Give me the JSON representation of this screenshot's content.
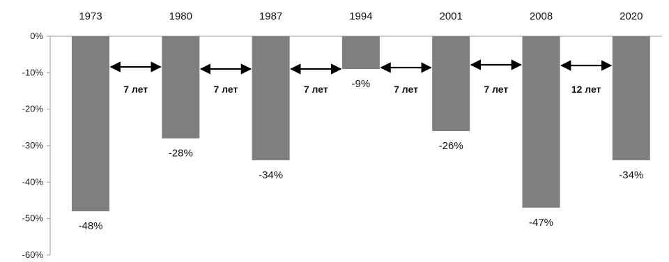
{
  "chart_data": {
    "type": "bar",
    "categories": [
      "1973",
      "1980",
      "1987",
      "1994",
      "2001",
      "2008",
      "2020"
    ],
    "values": [
      -48,
      -28,
      -34,
      -9,
      -26,
      -47,
      -34
    ],
    "data_labels": [
      "-48%",
      "-28%",
      "-34%",
      "-9%",
      "-26%",
      "-47%",
      "-34%"
    ],
    "ylim": [
      -60,
      0
    ],
    "yticks": [
      0,
      -10,
      -20,
      -30,
      -40,
      -50,
      -60
    ],
    "ytick_labels": [
      "0%",
      "-10%",
      "-20%",
      "-30%",
      "-40%",
      "-50%",
      "-60%"
    ],
    "category_axis_position": "top",
    "bar_color": "#7f7f7f",
    "annotations": [
      {
        "from": "1973",
        "to": "1980",
        "label": "7 лет"
      },
      {
        "from": "1980",
        "to": "1987",
        "label": "7 лет"
      },
      {
        "from": "1987",
        "to": "1994",
        "label": "7 лет"
      },
      {
        "from": "1994",
        "to": "2001",
        "label": "7 лет"
      },
      {
        "from": "2001",
        "to": "2008",
        "label": "7 лет"
      },
      {
        "from": "2008",
        "to": "2020",
        "label": "12 лет"
      }
    ]
  }
}
